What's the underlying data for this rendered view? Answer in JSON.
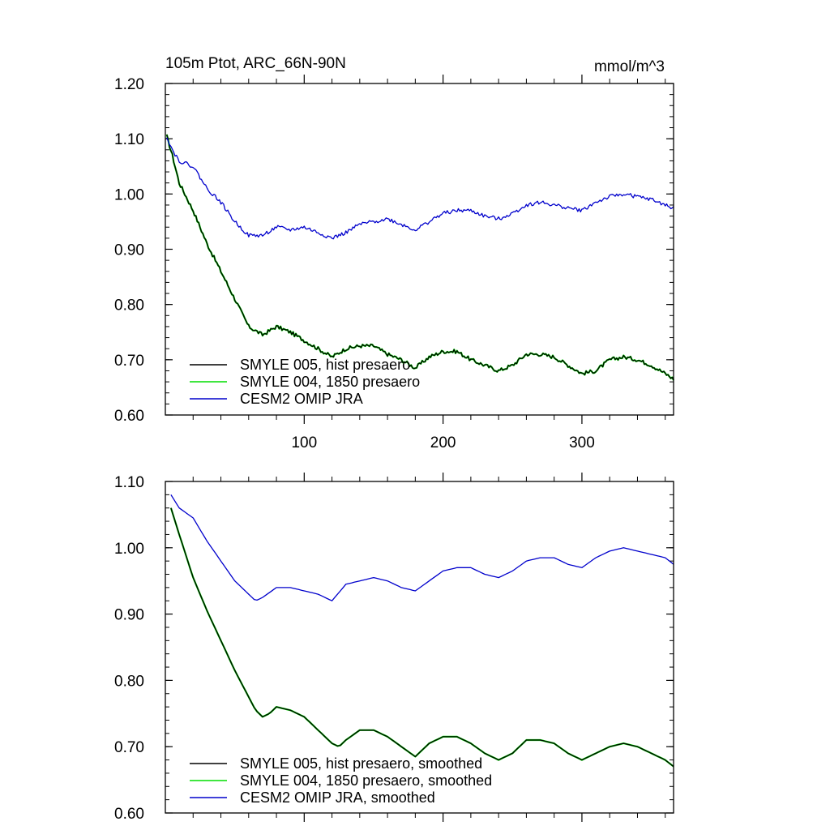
{
  "chart_data": [
    {
      "type": "line",
      "title": "105m Ptot, ARC_66N-90N",
      "units": "mmol/m^3",
      "xlabel": "",
      "ylabel": "",
      "xlim": [
        0,
        366
      ],
      "ylim": [
        0.6,
        1.2
      ],
      "xticks": [
        100,
        200,
        300
      ],
      "xtick_labels": [
        "100",
        "200",
        "300"
      ],
      "yticks": [
        0.6,
        0.7,
        0.8,
        0.9,
        1.0,
        1.1,
        1.2
      ],
      "ytick_labels": [
        "0.60",
        "0.70",
        "0.80",
        "0.90",
        "1.00",
        "1.10",
        "1.20"
      ],
      "legend_position": "bottom-left",
      "noisy": true,
      "series": [
        {
          "name": "SMYLE 005, hist presaero",
          "color": "#000000",
          "x": [
            1,
            5,
            10,
            20,
            30,
            40,
            50,
            60,
            70,
            80,
            90,
            100,
            110,
            120,
            130,
            140,
            150,
            160,
            170,
            180,
            190,
            200,
            210,
            220,
            230,
            240,
            250,
            260,
            270,
            280,
            290,
            300,
            310,
            320,
            330,
            340,
            350,
            360,
            366
          ],
          "values": [
            1.105,
            1.07,
            1.02,
            0.97,
            0.91,
            0.86,
            0.81,
            0.76,
            0.745,
            0.76,
            0.75,
            0.735,
            0.72,
            0.705,
            0.72,
            0.725,
            0.725,
            0.71,
            0.7,
            0.685,
            0.705,
            0.715,
            0.715,
            0.7,
            0.69,
            0.68,
            0.69,
            0.71,
            0.71,
            0.705,
            0.69,
            0.675,
            0.68,
            0.7,
            0.705,
            0.7,
            0.69,
            0.675,
            0.665
          ]
        },
        {
          "name": "SMYLE 004, 1850 presaero",
          "color": "#00dd00",
          "x": [
            1,
            5,
            10,
            20,
            30,
            40,
            50,
            60,
            70,
            80,
            90,
            100,
            110,
            120,
            130,
            140,
            150,
            160,
            170,
            180,
            190,
            200,
            210,
            220,
            230,
            240,
            250,
            260,
            270,
            280,
            290,
            300,
            310,
            320,
            330,
            340,
            350,
            360,
            366
          ],
          "values": [
            1.105,
            1.07,
            1.02,
            0.97,
            0.91,
            0.86,
            0.81,
            0.76,
            0.745,
            0.76,
            0.75,
            0.735,
            0.72,
            0.705,
            0.72,
            0.725,
            0.725,
            0.71,
            0.7,
            0.685,
            0.705,
            0.715,
            0.715,
            0.7,
            0.69,
            0.68,
            0.69,
            0.71,
            0.71,
            0.705,
            0.69,
            0.675,
            0.68,
            0.7,
            0.705,
            0.7,
            0.69,
            0.675,
            0.665
          ]
        },
        {
          "name": "CESM2 OMIP JRA",
          "color": "#0000cc",
          "x": [
            1,
            5,
            10,
            20,
            30,
            40,
            50,
            60,
            70,
            80,
            90,
            100,
            110,
            120,
            130,
            140,
            150,
            160,
            170,
            180,
            190,
            200,
            210,
            220,
            230,
            240,
            250,
            260,
            270,
            280,
            290,
            300,
            310,
            320,
            330,
            340,
            350,
            360,
            366
          ],
          "values": [
            1.105,
            1.08,
            1.06,
            1.05,
            1.01,
            0.985,
            0.95,
            0.925,
            0.925,
            0.94,
            0.935,
            0.94,
            0.93,
            0.92,
            0.93,
            0.945,
            0.95,
            0.955,
            0.945,
            0.935,
            0.95,
            0.965,
            0.97,
            0.97,
            0.96,
            0.955,
            0.965,
            0.98,
            0.985,
            0.98,
            0.975,
            0.97,
            0.985,
            0.995,
            1.0,
            0.995,
            0.99,
            0.98,
            0.975
          ]
        }
      ]
    },
    {
      "type": "line",
      "title": "",
      "xlabel": "",
      "ylabel": "",
      "xlim": [
        0,
        366
      ],
      "ylim": [
        0.6,
        1.1
      ],
      "xticks": [
        100,
        200,
        300
      ],
      "yticks": [
        0.6,
        0.7,
        0.8,
        0.9,
        1.0,
        1.1
      ],
      "ytick_labels": [
        "0.60",
        "0.70",
        "0.80",
        "0.90",
        "1.00",
        "1.10"
      ],
      "legend_position": "bottom-left",
      "noisy": false,
      "series": [
        {
          "name": "SMYLE 005, hist presaero, smoothed",
          "color": "#000000",
          "x": [
            4,
            10,
            20,
            30,
            40,
            50,
            60,
            65,
            70,
            75,
            80,
            90,
            100,
            110,
            120,
            125,
            130,
            140,
            150,
            160,
            170,
            180,
            190,
            200,
            210,
            220,
            230,
            240,
            250,
            260,
            270,
            280,
            290,
            300,
            310,
            320,
            330,
            340,
            350,
            360,
            366
          ],
          "values": [
            1.06,
            1.02,
            0.955,
            0.905,
            0.86,
            0.815,
            0.775,
            0.755,
            0.745,
            0.75,
            0.76,
            0.755,
            0.745,
            0.725,
            0.705,
            0.7,
            0.71,
            0.725,
            0.725,
            0.715,
            0.7,
            0.685,
            0.705,
            0.715,
            0.715,
            0.705,
            0.69,
            0.68,
            0.69,
            0.71,
            0.71,
            0.705,
            0.69,
            0.68,
            0.69,
            0.7,
            0.705,
            0.7,
            0.69,
            0.68,
            0.67
          ]
        },
        {
          "name": "SMYLE 004, 1850 presaero, smoothed",
          "color": "#00dd00",
          "x": [
            4,
            10,
            20,
            30,
            40,
            50,
            60,
            65,
            70,
            75,
            80,
            90,
            100,
            110,
            120,
            125,
            130,
            140,
            150,
            160,
            170,
            180,
            190,
            200,
            210,
            220,
            230,
            240,
            250,
            260,
            270,
            280,
            290,
            300,
            310,
            320,
            330,
            340,
            350,
            360,
            366
          ],
          "values": [
            1.06,
            1.02,
            0.955,
            0.905,
            0.86,
            0.815,
            0.775,
            0.755,
            0.745,
            0.75,
            0.76,
            0.755,
            0.745,
            0.725,
            0.705,
            0.7,
            0.71,
            0.725,
            0.725,
            0.715,
            0.7,
            0.685,
            0.705,
            0.715,
            0.715,
            0.705,
            0.69,
            0.68,
            0.69,
            0.71,
            0.71,
            0.705,
            0.69,
            0.68,
            0.69,
            0.7,
            0.705,
            0.7,
            0.69,
            0.68,
            0.67
          ]
        },
        {
          "name": "CESM2 OMIP JRA, smoothed",
          "color": "#0000cc",
          "x": [
            4,
            10,
            20,
            30,
            40,
            50,
            60,
            65,
            70,
            80,
            90,
            100,
            110,
            120,
            130,
            140,
            150,
            160,
            170,
            180,
            190,
            200,
            210,
            220,
            230,
            240,
            250,
            260,
            270,
            280,
            290,
            300,
            310,
            320,
            330,
            340,
            350,
            360,
            366
          ],
          "values": [
            1.08,
            1.06,
            1.045,
            1.01,
            0.98,
            0.95,
            0.93,
            0.92,
            0.925,
            0.94,
            0.94,
            0.935,
            0.93,
            0.92,
            0.945,
            0.95,
            0.955,
            0.95,
            0.94,
            0.935,
            0.95,
            0.965,
            0.97,
            0.97,
            0.96,
            0.955,
            0.965,
            0.98,
            0.985,
            0.985,
            0.975,
            0.97,
            0.985,
            0.995,
            1.0,
            0.995,
            0.99,
            0.985,
            0.975
          ]
        }
      ]
    }
  ]
}
